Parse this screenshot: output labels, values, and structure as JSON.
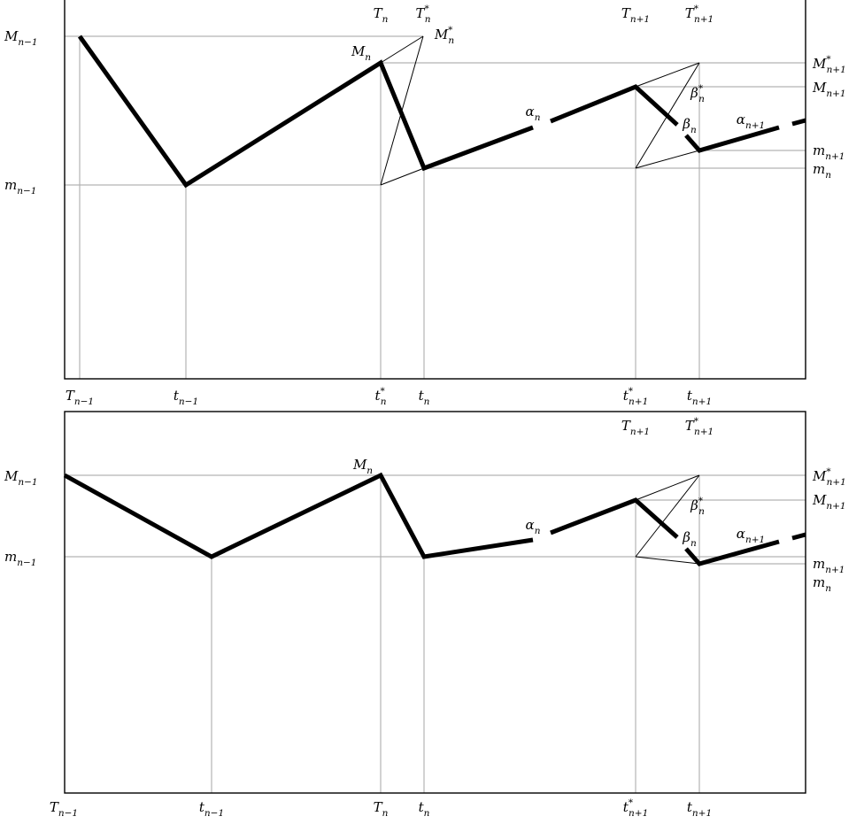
{
  "panels": [
    {
      "id": "top",
      "left_labels": [
        {
          "key": "M_prev",
          "base": "M",
          "sub": "n−1",
          "sup": ""
        },
        {
          "key": "m_prev",
          "base": "m",
          "sub": "n−1",
          "sup": ""
        }
      ],
      "right_labels": [
        {
          "key": "Mstar_next",
          "base": "M",
          "sub": "n+1",
          "sup": "*"
        },
        {
          "key": "M_next",
          "base": "M",
          "sub": "n+1",
          "sup": ""
        },
        {
          "key": "m_next",
          "base": "m",
          "sub": "n+1",
          "sup": ""
        },
        {
          "key": "m_n",
          "base": "m",
          "sub": "n",
          "sup": ""
        }
      ],
      "top_labels": [
        {
          "key": "T_n",
          "base": "T",
          "sub": "n",
          "sup": ""
        },
        {
          "key": "Tstar_n",
          "base": "T",
          "sub": "n",
          "sup": "*"
        },
        {
          "key": "T_next",
          "base": "T",
          "sub": "n+1",
          "sup": ""
        },
        {
          "key": "Tstar_next",
          "base": "T",
          "sub": "n+1",
          "sup": "*"
        }
      ],
      "bottom_labels": [
        {
          "key": "T_prev",
          "base": "T",
          "sub": "n−1",
          "sup": ""
        },
        {
          "key": "t_prev",
          "base": "t",
          "sub": "n−1",
          "sup": ""
        },
        {
          "key": "tstar_n",
          "base": "t",
          "sub": "n",
          "sup": "*"
        },
        {
          "key": "t_n",
          "base": "t",
          "sub": "n",
          "sup": ""
        },
        {
          "key": "tstar_next",
          "base": "t",
          "sub": "n+1",
          "sup": "*"
        },
        {
          "key": "t_next",
          "base": "t",
          "sub": "n+1",
          "sup": ""
        }
      ],
      "inner_labels": [
        {
          "key": "M_n",
          "base": "M",
          "sub": "n",
          "sup": ""
        },
        {
          "key": "Mstar_n",
          "base": "M",
          "sub": "n",
          "sup": "*"
        },
        {
          "key": "alpha_n",
          "base": "α",
          "sub": "n",
          "sup": ""
        },
        {
          "key": "betastar_n",
          "base": "β",
          "sub": "n",
          "sup": "*"
        },
        {
          "key": "beta_n",
          "base": "β",
          "sub": "n",
          "sup": ""
        },
        {
          "key": "alpha_next",
          "base": "α",
          "sub": "n+1",
          "sup": ""
        }
      ]
    },
    {
      "id": "bottom",
      "left_labels": [
        {
          "key": "M_prev",
          "base": "M",
          "sub": "n−1",
          "sup": ""
        },
        {
          "key": "m_prev",
          "base": "m",
          "sub": "n−1",
          "sup": ""
        }
      ],
      "right_labels": [
        {
          "key": "Mstar_next",
          "base": "M",
          "sub": "n+1",
          "sup": "*"
        },
        {
          "key": "M_next",
          "base": "M",
          "sub": "n+1",
          "sup": ""
        },
        {
          "key": "m_next",
          "base": "m",
          "sub": "n+1",
          "sup": ""
        },
        {
          "key": "m_n",
          "base": "m",
          "sub": "n",
          "sup": ""
        }
      ],
      "top_labels": [
        {
          "key": "T_next",
          "base": "T",
          "sub": "n+1",
          "sup": ""
        },
        {
          "key": "Tstar_next",
          "base": "T",
          "sub": "n+1",
          "sup": "*"
        }
      ],
      "bottom_labels": [
        {
          "key": "T_prev",
          "base": "T",
          "sub": "n−1",
          "sup": ""
        },
        {
          "key": "t_prev",
          "base": "t",
          "sub": "n−1",
          "sup": ""
        },
        {
          "key": "T_n",
          "base": "T",
          "sub": "n",
          "sup": ""
        },
        {
          "key": "t_n",
          "base": "t",
          "sub": "n",
          "sup": ""
        },
        {
          "key": "tstar_next",
          "base": "t",
          "sub": "n+1",
          "sup": "*"
        },
        {
          "key": "t_next",
          "base": "t",
          "sub": "n+1",
          "sup": ""
        }
      ],
      "inner_labels": [
        {
          "key": "M_n",
          "base": "M",
          "sub": "n",
          "sup": ""
        },
        {
          "key": "alpha_n",
          "base": "α",
          "sub": "n",
          "sup": ""
        },
        {
          "key": "betastar_n",
          "base": "β",
          "sub": "n",
          "sup": "*"
        },
        {
          "key": "beta_n",
          "base": "β",
          "sub": "n",
          "sup": ""
        },
        {
          "key": "alpha_next",
          "base": "α",
          "sub": "n+1",
          "sup": ""
        }
      ]
    }
  ],
  "colors": {
    "frame": "#000000",
    "guide": "#b3b3b3",
    "path": "#000000",
    "thin": "#000000"
  }
}
